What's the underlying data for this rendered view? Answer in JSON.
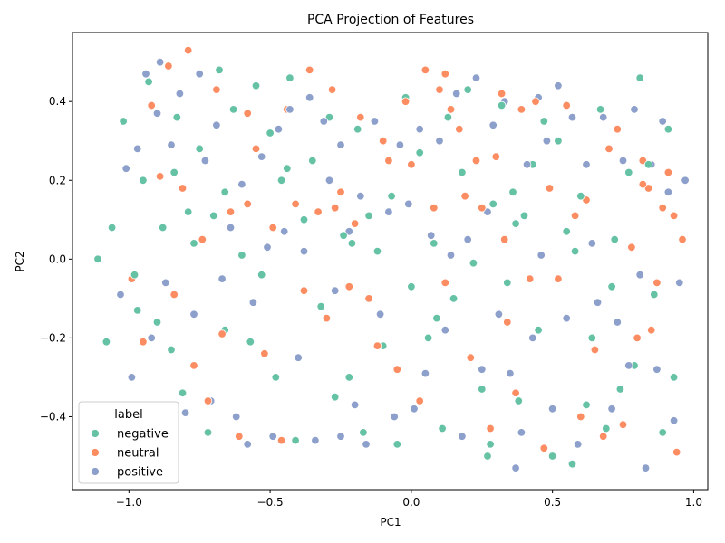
{
  "chart_data": {
    "type": "scatter",
    "title": "PCA Projection of Features",
    "xlabel": "PC1",
    "ylabel": "PC2",
    "xlim": [
      -1.2,
      1.05
    ],
    "ylim": [
      -0.585,
      0.575
    ],
    "xticks": [
      -1.0,
      -0.5,
      0.0,
      0.5,
      1.0
    ],
    "xtick_labels": [
      "−1.0",
      "−0.5",
      "0.0",
      "0.5",
      "1.0"
    ],
    "yticks": [
      -0.4,
      -0.2,
      0.0,
      0.2,
      0.4
    ],
    "ytick_labels": [
      "−0.4",
      "−0.2",
      "0.0",
      "0.2",
      "0.4"
    ],
    "grid": false,
    "legend": {
      "title": "label",
      "placement": "lower-left"
    },
    "series": [
      {
        "name": "negative",
        "color": "#66c2a5",
        "points": [
          [
            -1.11,
            0.0
          ],
          [
            -1.08,
            -0.21
          ],
          [
            -1.06,
            0.08
          ],
          [
            -1.02,
            0.35
          ],
          [
            -0.98,
            -0.04
          ],
          [
            -0.97,
            -0.13
          ],
          [
            -0.95,
            0.2
          ],
          [
            -0.93,
            0.45
          ],
          [
            -0.9,
            -0.16
          ],
          [
            -0.88,
            0.08
          ],
          [
            -0.85,
            -0.23
          ],
          [
            -0.84,
            0.22
          ],
          [
            -0.81,
            -0.34
          ],
          [
            -0.79,
            0.12
          ],
          [
            -0.77,
            0.04
          ],
          [
            -0.75,
            0.28
          ],
          [
            -0.72,
            -0.44
          ],
          [
            -0.7,
            0.11
          ],
          [
            -0.68,
            0.48
          ],
          [
            -0.66,
            -0.18
          ],
          [
            -0.63,
            0.38
          ],
          [
            -0.6,
            0.01
          ],
          [
            -0.57,
            -0.21
          ],
          [
            -0.55,
            0.44
          ],
          [
            -0.53,
            -0.04
          ],
          [
            -0.5,
            0.32
          ],
          [
            -0.48,
            -0.3
          ],
          [
            -0.46,
            0.2
          ],
          [
            -0.43,
            0.46
          ],
          [
            -0.41,
            -0.46
          ],
          [
            -0.38,
            0.1
          ],
          [
            -0.35,
            0.25
          ],
          [
            -0.32,
            -0.12
          ],
          [
            -0.29,
            0.36
          ],
          [
            -0.27,
            -0.35
          ],
          [
            -0.24,
            0.06
          ],
          [
            -0.22,
            -0.3
          ],
          [
            -0.19,
            0.33
          ],
          [
            -0.17,
            -0.44
          ],
          [
            -0.15,
            0.11
          ],
          [
            -0.12,
            0.02
          ],
          [
            -0.1,
            -0.22
          ],
          [
            -0.07,
            0.16
          ],
          [
            -0.05,
            -0.47
          ],
          [
            -0.02,
            0.41
          ],
          [
            0.0,
            -0.07
          ],
          [
            0.03,
            0.27
          ],
          [
            0.06,
            -0.2
          ],
          [
            0.08,
            0.04
          ],
          [
            0.11,
            -0.43
          ],
          [
            0.13,
            0.36
          ],
          [
            0.15,
            -0.1
          ],
          [
            0.18,
            0.22
          ],
          [
            0.2,
            0.43
          ],
          [
            0.22,
            -0.01
          ],
          [
            0.25,
            -0.33
          ],
          [
            0.27,
            -0.5
          ],
          [
            0.29,
            0.14
          ],
          [
            0.32,
            0.39
          ],
          [
            0.34,
            -0.06
          ],
          [
            0.36,
            0.17
          ],
          [
            0.38,
            -0.36
          ],
          [
            0.4,
            0.11
          ],
          [
            0.43,
            0.24
          ],
          [
            0.45,
            -0.18
          ],
          [
            0.47,
            0.35
          ],
          [
            0.5,
            -0.5
          ],
          [
            0.52,
            0.3
          ],
          [
            0.55,
            0.07
          ],
          [
            0.57,
            -0.52
          ],
          [
            0.6,
            0.16
          ],
          [
            0.62,
            -0.37
          ],
          [
            0.64,
            -0.2
          ],
          [
            0.67,
            0.38
          ],
          [
            0.69,
            -0.43
          ],
          [
            0.72,
            0.05
          ],
          [
            0.74,
            -0.33
          ],
          [
            0.77,
            0.22
          ],
          [
            0.79,
            -0.27
          ],
          [
            0.81,
            0.46
          ],
          [
            0.84,
            0.24
          ],
          [
            0.86,
            -0.09
          ],
          [
            0.89,
            -0.44
          ],
          [
            0.91,
            0.33
          ],
          [
            0.93,
            -0.3
          ],
          [
            -0.83,
            0.36
          ],
          [
            -0.44,
            0.23
          ],
          [
            0.09,
            -0.15
          ],
          [
            0.37,
            0.09
          ],
          [
            0.71,
            -0.07
          ],
          [
            -0.66,
            0.17
          ],
          [
            -0.21,
            0.04
          ],
          [
            0.28,
            -0.47
          ],
          [
            0.58,
            0.02
          ]
        ]
      },
      {
        "name": "neutral",
        "color": "#fc8d62",
        "points": [
          [
            -0.99,
            -0.05
          ],
          [
            -0.95,
            -0.21
          ],
          [
            -0.92,
            0.39
          ],
          [
            -0.89,
            0.21
          ],
          [
            -0.86,
            0.49
          ],
          [
            -0.84,
            -0.09
          ],
          [
            -0.81,
            0.18
          ],
          [
            -0.79,
            0.53
          ],
          [
            -0.77,
            -0.27
          ],
          [
            -0.74,
            0.05
          ],
          [
            -0.72,
            -0.36
          ],
          [
            -0.69,
            0.43
          ],
          [
            -0.67,
            -0.19
          ],
          [
            -0.64,
            0.12
          ],
          [
            -0.61,
            -0.45
          ],
          [
            -0.58,
            0.37
          ],
          [
            -0.55,
            0.28
          ],
          [
            -0.52,
            -0.24
          ],
          [
            -0.49,
            0.08
          ],
          [
            -0.46,
            -0.46
          ],
          [
            -0.44,
            0.38
          ],
          [
            -0.41,
            0.14
          ],
          [
            -0.38,
            -0.08
          ],
          [
            -0.36,
            0.48
          ],
          [
            -0.33,
            0.12
          ],
          [
            -0.3,
            -0.15
          ],
          [
            -0.28,
            0.43
          ],
          [
            -0.25,
            0.17
          ],
          [
            -0.22,
            -0.07
          ],
          [
            -0.2,
            0.09
          ],
          [
            -0.18,
            0.36
          ],
          [
            -0.15,
            -0.1
          ],
          [
            -0.12,
            -0.22
          ],
          [
            -0.1,
            0.3
          ],
          [
            -0.08,
            0.25
          ],
          [
            -0.05,
            -0.28
          ],
          [
            -0.02,
            0.4
          ],
          [
            0.0,
            0.24
          ],
          [
            0.03,
            -0.36
          ],
          [
            0.05,
            0.48
          ],
          [
            0.08,
            0.13
          ],
          [
            0.1,
            0.43
          ],
          [
            0.12,
            -0.06
          ],
          [
            0.14,
            0.38
          ],
          [
            0.17,
            0.33
          ],
          [
            0.19,
            0.16
          ],
          [
            0.21,
            -0.25
          ],
          [
            0.23,
            0.25
          ],
          [
            0.25,
            0.13
          ],
          [
            0.28,
            -0.43
          ],
          [
            0.3,
            0.26
          ],
          [
            0.32,
            0.42
          ],
          [
            0.34,
            -0.16
          ],
          [
            0.37,
            -0.34
          ],
          [
            0.39,
            0.38
          ],
          [
            0.42,
            -0.05
          ],
          [
            0.44,
            0.4
          ],
          [
            0.47,
            -0.48
          ],
          [
            0.49,
            0.18
          ],
          [
            0.52,
            -0.05
          ],
          [
            0.55,
            0.39
          ],
          [
            0.58,
            0.11
          ],
          [
            0.6,
            -0.4
          ],
          [
            0.62,
            0.15
          ],
          [
            0.65,
            -0.23
          ],
          [
            0.68,
            -0.45
          ],
          [
            0.7,
            0.28
          ],
          [
            0.73,
            0.33
          ],
          [
            0.75,
            -0.42
          ],
          [
            0.78,
            0.03
          ],
          [
            0.8,
            -0.2
          ],
          [
            0.82,
            0.25
          ],
          [
            0.84,
            0.18
          ],
          [
            0.85,
            -0.18
          ],
          [
            0.87,
            -0.06
          ],
          [
            0.89,
            0.13
          ],
          [
            0.91,
            0.22
          ],
          [
            0.93,
            0.11
          ],
          [
            0.94,
            -0.49
          ],
          [
            0.96,
            0.05
          ],
          [
            -0.58,
            0.14
          ],
          [
            -0.27,
            0.13
          ],
          [
            0.12,
            0.47
          ],
          [
            0.33,
            0.05
          ],
          [
            0.82,
            0.19
          ]
        ]
      },
      {
        "name": "positive",
        "color": "#8da0cb",
        "points": [
          [
            -1.03,
            -0.09
          ],
          [
            -1.01,
            0.23
          ],
          [
            -0.99,
            -0.3
          ],
          [
            -0.97,
            0.28
          ],
          [
            -0.94,
            0.47
          ],
          [
            -0.92,
            -0.2
          ],
          [
            -0.9,
            0.37
          ],
          [
            -0.89,
            0.5
          ],
          [
            -0.87,
            -0.06
          ],
          [
            -0.85,
            0.29
          ],
          [
            -0.82,
            0.42
          ],
          [
            -0.8,
            -0.39
          ],
          [
            -0.77,
            -0.14
          ],
          [
            -0.75,
            0.47
          ],
          [
            -0.73,
            0.25
          ],
          [
            -0.71,
            -0.36
          ],
          [
            -0.69,
            0.34
          ],
          [
            -0.67,
            -0.05
          ],
          [
            -0.64,
            0.08
          ],
          [
            -0.62,
            -0.4
          ],
          [
            -0.6,
            0.19
          ],
          [
            -0.58,
            -0.47
          ],
          [
            -0.56,
            -0.11
          ],
          [
            -0.53,
            0.26
          ],
          [
            -0.51,
            0.03
          ],
          [
            -0.49,
            -0.45
          ],
          [
            -0.47,
            0.33
          ],
          [
            -0.45,
            0.07
          ],
          [
            -0.43,
            0.38
          ],
          [
            -0.4,
            -0.25
          ],
          [
            -0.38,
            0.02
          ],
          [
            -0.36,
            0.41
          ],
          [
            -0.34,
            -0.46
          ],
          [
            -0.31,
            0.35
          ],
          [
            -0.29,
            0.2
          ],
          [
            -0.27,
            -0.08
          ],
          [
            -0.25,
            0.29
          ],
          [
            -0.22,
            0.07
          ],
          [
            -0.2,
            -0.37
          ],
          [
            -0.18,
            0.16
          ],
          [
            -0.16,
            -0.47
          ],
          [
            -0.13,
            0.35
          ],
          [
            -0.11,
            -0.14
          ],
          [
            -0.08,
            0.12
          ],
          [
            -0.06,
            -0.4
          ],
          [
            -0.04,
            0.29
          ],
          [
            -0.01,
            0.14
          ],
          [
            0.01,
            -0.38
          ],
          [
            0.03,
            0.33
          ],
          [
            0.05,
            -0.29
          ],
          [
            0.07,
            0.06
          ],
          [
            0.1,
            0.3
          ],
          [
            0.12,
            -0.18
          ],
          [
            0.14,
            0.01
          ],
          [
            0.16,
            0.42
          ],
          [
            0.18,
            -0.45
          ],
          [
            0.2,
            0.05
          ],
          [
            0.23,
            0.46
          ],
          [
            0.25,
            -0.28
          ],
          [
            0.27,
            0.12
          ],
          [
            0.29,
            0.34
          ],
          [
            0.31,
            -0.14
          ],
          [
            0.33,
            0.4
          ],
          [
            0.35,
            -0.29
          ],
          [
            0.37,
            -0.53
          ],
          [
            0.39,
            -0.44
          ],
          [
            0.41,
            0.24
          ],
          [
            0.43,
            -0.2
          ],
          [
            0.46,
            0.01
          ],
          [
            0.48,
            0.3
          ],
          [
            0.5,
            -0.38
          ],
          [
            0.52,
            0.44
          ],
          [
            0.55,
            -0.15
          ],
          [
            0.57,
            0.36
          ],
          [
            0.59,
            -0.47
          ],
          [
            0.62,
            0.24
          ],
          [
            0.64,
            0.04
          ],
          [
            0.66,
            -0.11
          ],
          [
            0.68,
            0.36
          ],
          [
            0.71,
            -0.38
          ],
          [
            0.73,
            -0.16
          ],
          [
            0.75,
            0.25
          ],
          [
            0.77,
            -0.27
          ],
          [
            0.79,
            0.38
          ],
          [
            0.81,
            -0.04
          ],
          [
            0.83,
            -0.53
          ],
          [
            0.85,
            0.24
          ],
          [
            0.87,
            -0.28
          ],
          [
            0.89,
            0.35
          ],
          [
            0.91,
            0.17
          ],
          [
            0.93,
            -0.41
          ],
          [
            0.95,
            -0.06
          ],
          [
            0.97,
            0.2
          ],
          [
            -0.25,
            -0.45
          ],
          [
            0.45,
            0.41
          ]
        ]
      }
    ]
  }
}
